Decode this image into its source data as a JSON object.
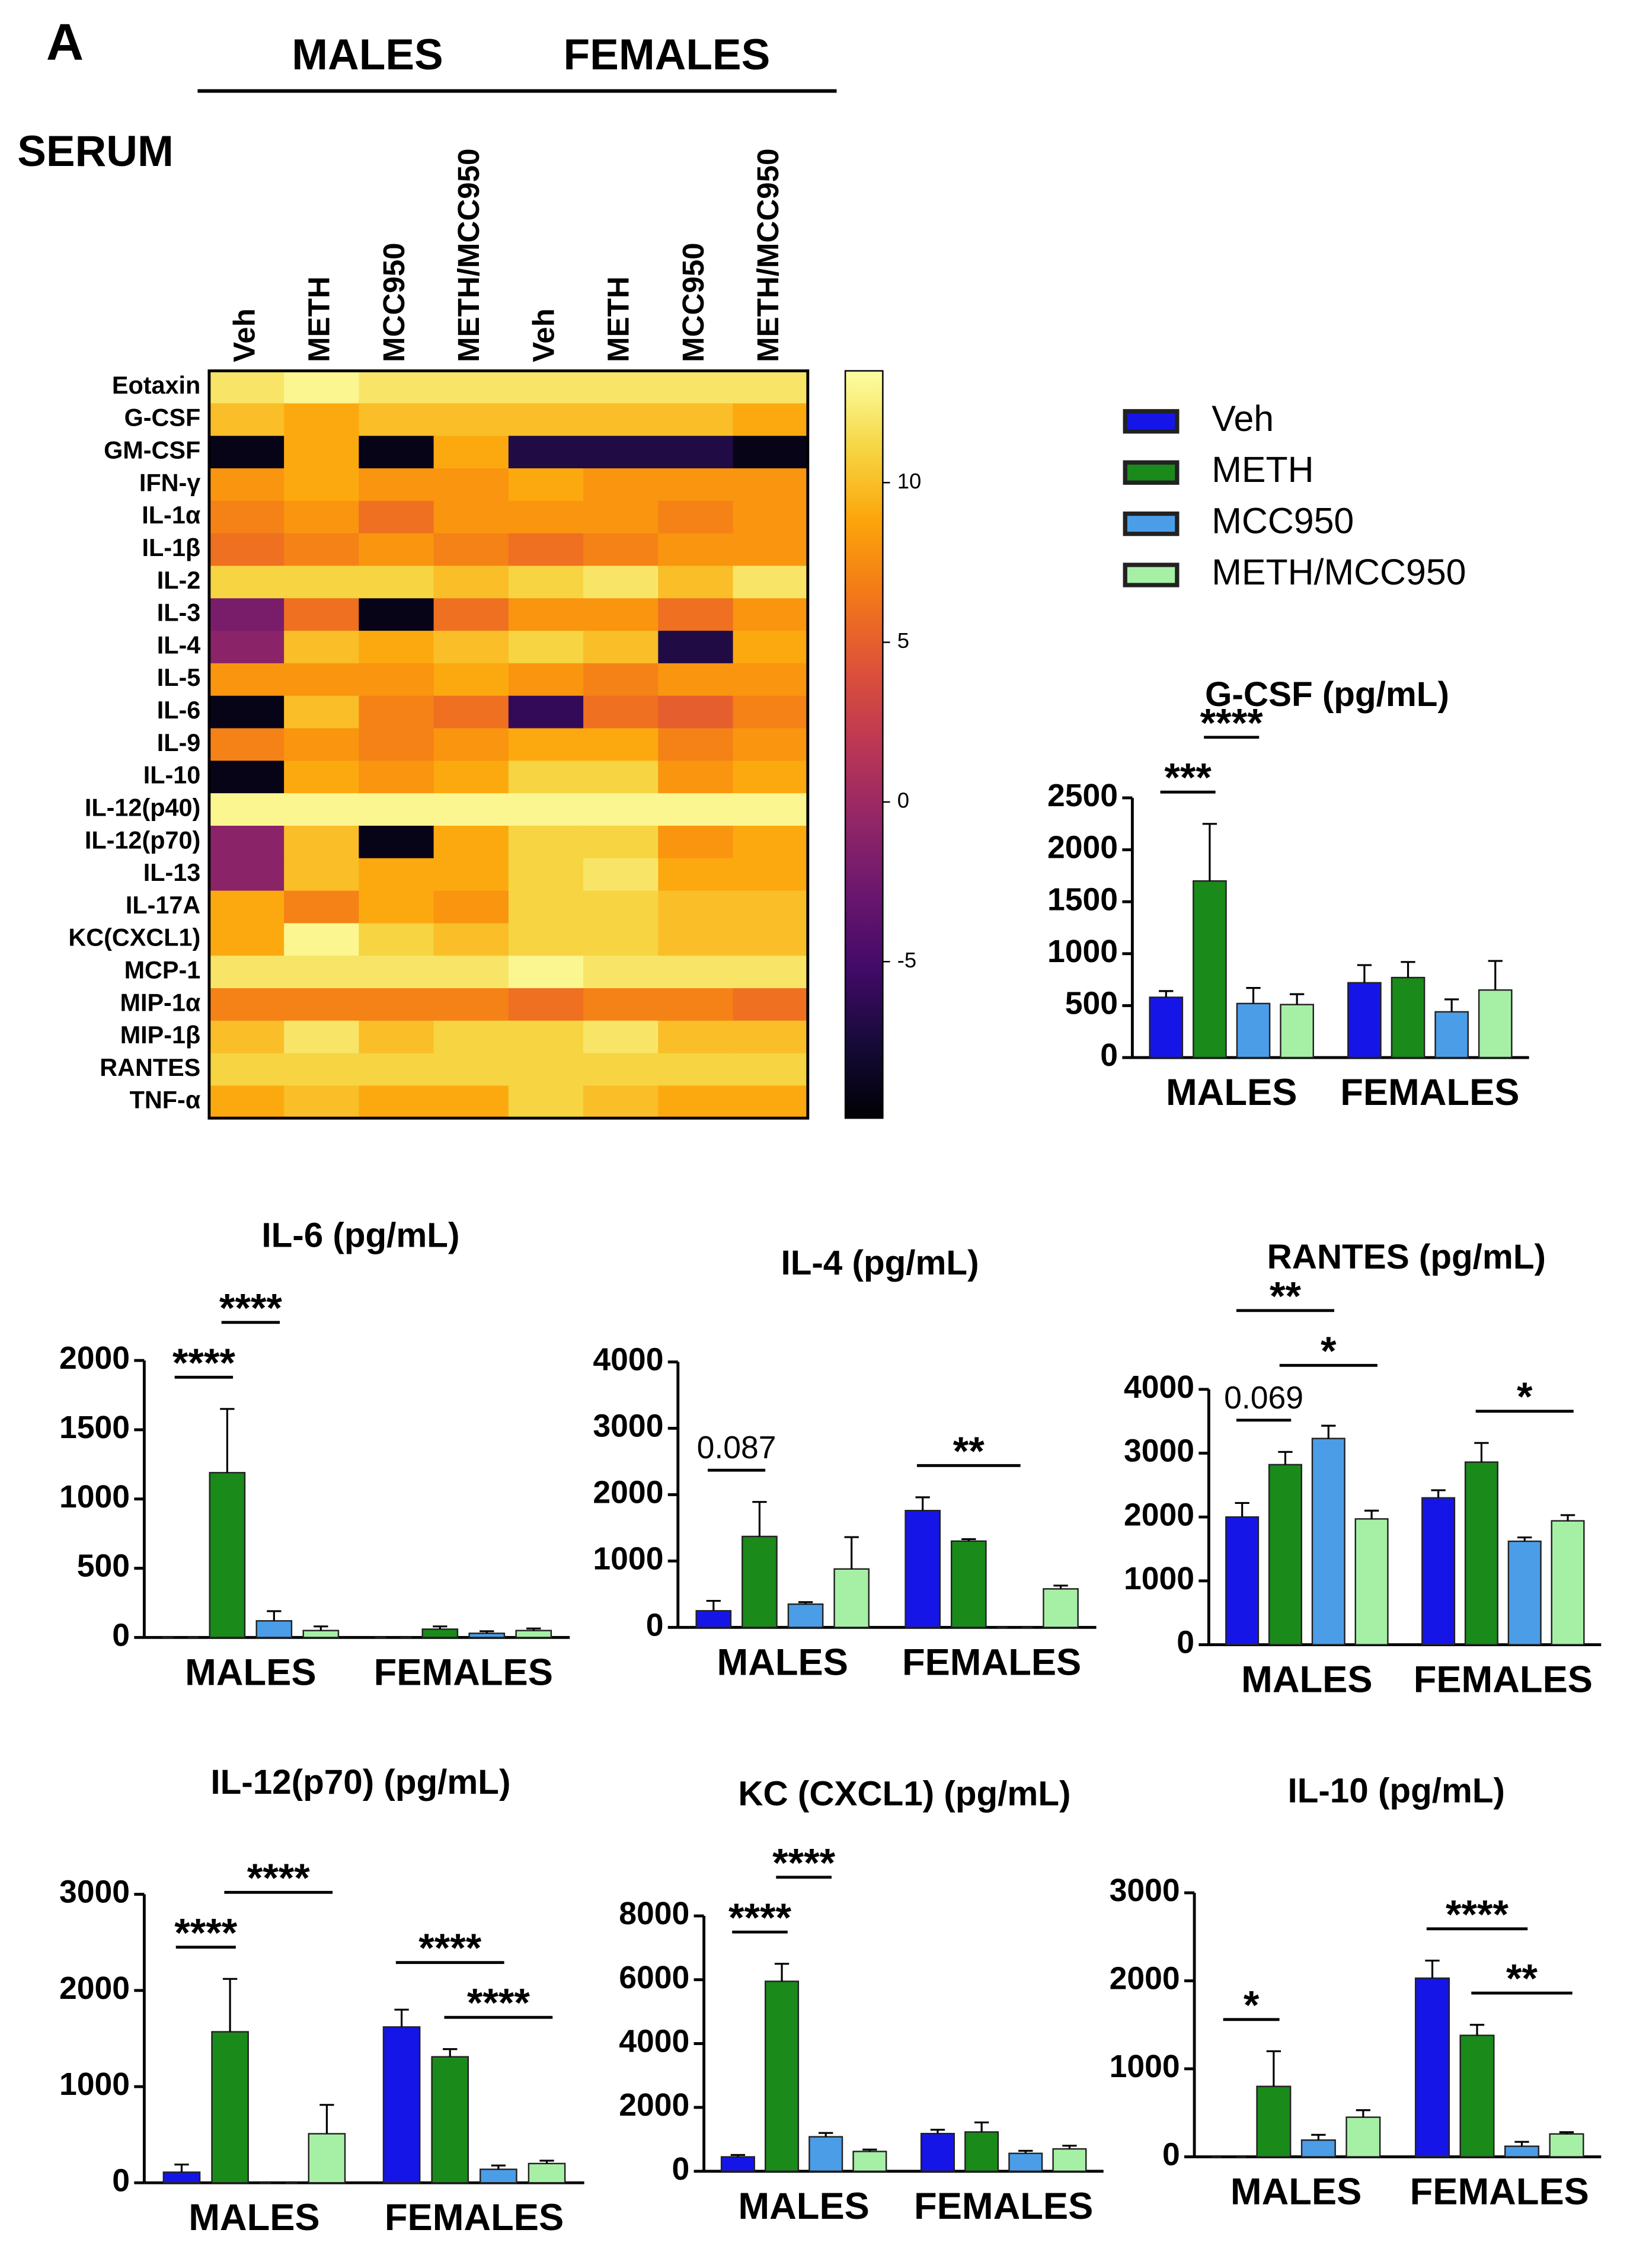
{
  "panel_label": "A",
  "chart_data": [
    {
      "type": "heatmap",
      "title": "SERUM",
      "column_groups": [
        "MALES",
        "FEMALES"
      ],
      "columns": [
        "Veh",
        "METH",
        "MCC950",
        "METH/MCC950",
        "Veh",
        "METH",
        "MCC950",
        "METH/MCC950"
      ],
      "rows": [
        "Eotaxin",
        "G-CSF",
        "GM-CSF",
        "IFN-γ",
        "IL-1α",
        "IL-1β",
        "IL-2",
        "IL-3",
        "IL-4",
        "IL-5",
        "IL-6",
        "IL-9",
        "IL-10",
        "IL-12(p40)",
        "IL-12(p70)",
        "IL-13",
        "IL-17A",
        "KC(CXCL1)",
        "MCP-1",
        "MIP-1α",
        "MIP-1β",
        "RANTES",
        "TNF-α"
      ],
      "values": [
        [
          12,
          13,
          12,
          12,
          12,
          12,
          12,
          12
        ],
        [
          10,
          9,
          10,
          10,
          10,
          10,
          10,
          9
        ],
        [
          -9,
          9,
          -9,
          9,
          -7,
          -7,
          -7,
          -9
        ],
        [
          8,
          9,
          8,
          8,
          9,
          8,
          8,
          8
        ],
        [
          7,
          8,
          6,
          8,
          8,
          8,
          7,
          8
        ],
        [
          6,
          7,
          8,
          7,
          6,
          7,
          8,
          8
        ],
        [
          11,
          11,
          11,
          10,
          11,
          12,
          10,
          12
        ],
        [
          -2,
          6,
          -9,
          6,
          8,
          8,
          6,
          8
        ],
        [
          -1,
          10,
          9,
          10,
          11,
          10,
          -7,
          9
        ],
        [
          8,
          8,
          8,
          9,
          8,
          7,
          8,
          8
        ],
        [
          -9,
          10,
          7,
          6,
          -6,
          6,
          5,
          7
        ],
        [
          7,
          8,
          7,
          8,
          9,
          9,
          7,
          8
        ],
        [
          -9,
          9,
          8,
          9,
          11,
          11,
          8,
          9
        ],
        [
          13,
          13,
          13,
          13,
          13,
          13,
          13,
          13
        ],
        [
          -1,
          10,
          -9,
          9,
          11,
          11,
          8,
          9
        ],
        [
          -1,
          10,
          9,
          9,
          11,
          12,
          9,
          9
        ],
        [
          9,
          7,
          9,
          8,
          11,
          11,
          10,
          10
        ],
        [
          9,
          13,
          11,
          10,
          11,
          11,
          10,
          10
        ],
        [
          12,
          12,
          12,
          12,
          13,
          12,
          12,
          12
        ],
        [
          7,
          7,
          7,
          7,
          6,
          7,
          7,
          6
        ],
        [
          10,
          12,
          10,
          11,
          11,
          12,
          10,
          10
        ],
        [
          11,
          11,
          11,
          11,
          11,
          11,
          11,
          11
        ],
        [
          9,
          10,
          9,
          9,
          11,
          10,
          9,
          9
        ]
      ],
      "colormap": "inferno",
      "clim": [
        -9.9,
        13.5
      ],
      "cticks": [
        -5,
        0,
        5,
        10
      ]
    },
    {
      "type": "bar",
      "title": "G-CSF (pg/mL)",
      "categories": [
        "MALES",
        "FEMALES"
      ],
      "ylim": [
        0,
        2500
      ],
      "yticks": [
        0,
        500,
        1000,
        1500,
        2000,
        2500
      ],
      "legend": true,
      "series": [
        {
          "name": "Veh",
          "color": "#1515e8",
          "values": [
            580,
            720
          ],
          "errors": [
            60,
            170
          ]
        },
        {
          "name": "METH",
          "color": "#1a8a1a",
          "values": [
            1700,
            770
          ],
          "errors": [
            550,
            150
          ]
        },
        {
          "name": "MCC950",
          "color": "#4b9de8",
          "values": [
            520,
            440
          ],
          "errors": [
            150,
            120
          ]
        },
        {
          "name": "METH/MCC950",
          "color": "#a6f0a6",
          "values": [
            510,
            650
          ],
          "errors": [
            100,
            280
          ]
        }
      ],
      "annotations": [
        {
          "label": "***",
          "category": "MALES",
          "from": "Veh",
          "to": "METH"
        },
        {
          "label": "****",
          "category": "MALES",
          "from": "METH",
          "to": "MCC950"
        }
      ]
    },
    {
      "type": "bar",
      "title": "IL-6 (pg/mL)",
      "categories": [
        "MALES",
        "FEMALES"
      ],
      "ylim": [
        0,
        2000
      ],
      "yticks": [
        0,
        500,
        1000,
        1500,
        2000
      ],
      "series": [
        {
          "name": "Veh",
          "color": "#1515e8",
          "values": [
            0,
            0
          ],
          "errors": [
            0,
            0
          ]
        },
        {
          "name": "METH",
          "color": "#1a8a1a",
          "values": [
            1190,
            60
          ],
          "errors": [
            460,
            20
          ]
        },
        {
          "name": "MCC950",
          "color": "#4b9de8",
          "values": [
            120,
            30
          ],
          "errors": [
            70,
            15
          ]
        },
        {
          "name": "METH/MCC950",
          "color": "#a6f0a6",
          "values": [
            50,
            50
          ],
          "errors": [
            30,
            15
          ]
        }
      ],
      "annotations": [
        {
          "label": "****",
          "category": "MALES",
          "from": "Veh",
          "to": "METH"
        },
        {
          "label": "****",
          "category": "MALES",
          "from": "METH",
          "to": "MCC950"
        }
      ]
    },
    {
      "type": "bar",
      "title": "IL-4 (pg/mL)",
      "categories": [
        "MALES",
        "FEMALES"
      ],
      "ylim": [
        0,
        4000
      ],
      "yticks": [
        0,
        1000,
        2000,
        3000,
        4000
      ],
      "series": [
        {
          "name": "Veh",
          "color": "#1515e8",
          "values": [
            250,
            1760
          ],
          "errors": [
            150,
            200
          ]
        },
        {
          "name": "METH",
          "color": "#1a8a1a",
          "values": [
            1370,
            1300
          ],
          "errors": [
            520,
            30
          ]
        },
        {
          "name": "MCC950",
          "color": "#4b9de8",
          "values": [
            350,
            0
          ],
          "errors": [
            30,
            0
          ]
        },
        {
          "name": "METH/MCC950",
          "color": "#a6f0a6",
          "values": [
            880,
            580
          ],
          "errors": [
            480,
            50
          ]
        }
      ],
      "annotations": [
        {
          "label": "0.087",
          "category": "MALES",
          "from": "Veh",
          "to": "METH"
        },
        {
          "label": "**",
          "category": "FEMALES",
          "from": "Veh",
          "to": "MCC950"
        }
      ]
    },
    {
      "type": "bar",
      "title": "RANTES (pg/mL)",
      "categories": [
        "MALES",
        "FEMALES"
      ],
      "ylim": [
        0,
        4000
      ],
      "yticks": [
        0,
        1000,
        2000,
        3000,
        4000
      ],
      "series": [
        {
          "name": "Veh",
          "color": "#1515e8",
          "values": [
            2000,
            2300
          ],
          "errors": [
            220,
            120
          ]
        },
        {
          "name": "METH",
          "color": "#1a8a1a",
          "values": [
            2820,
            2860
          ],
          "errors": [
            200,
            300
          ]
        },
        {
          "name": "MCC950",
          "color": "#4b9de8",
          "values": [
            3230,
            1620
          ],
          "errors": [
            200,
            60
          ]
        },
        {
          "name": "METH/MCC950",
          "color": "#a6f0a6",
          "values": [
            1970,
            1940
          ],
          "errors": [
            130,
            90
          ]
        }
      ],
      "annotations": [
        {
          "label": "0.069",
          "category": "MALES",
          "from": "Veh",
          "to": "METH"
        },
        {
          "label": "*",
          "category": "MALES",
          "from": "METH",
          "to": "METH/MCC950"
        },
        {
          "label": "**",
          "category": "MALES",
          "from": "Veh",
          "to": "MCC950"
        },
        {
          "label": "*",
          "category": "FEMALES",
          "from": "METH",
          "to": "METH/MCC950"
        }
      ]
    },
    {
      "type": "bar",
      "title": "IL-12(p70) (pg/mL)",
      "categories": [
        "MALES",
        "FEMALES"
      ],
      "ylim": [
        0,
        3000
      ],
      "yticks": [
        0,
        1000,
        2000,
        3000
      ],
      "series": [
        {
          "name": "Veh",
          "color": "#1515e8",
          "values": [
            110,
            1620
          ],
          "errors": [
            80,
            180
          ]
        },
        {
          "name": "METH",
          "color": "#1a8a1a",
          "values": [
            1570,
            1310
          ],
          "errors": [
            550,
            80
          ]
        },
        {
          "name": "MCC950",
          "color": "#4b9de8",
          "values": [
            0,
            140
          ],
          "errors": [
            0,
            40
          ]
        },
        {
          "name": "METH/MCC950",
          "color": "#a6f0a6",
          "values": [
            510,
            200
          ],
          "errors": [
            300,
            30
          ]
        }
      ],
      "annotations": [
        {
          "label": "****",
          "category": "MALES",
          "from": "Veh",
          "to": "METH"
        },
        {
          "label": "****",
          "category": "MALES",
          "from": "METH",
          "to": "METH/MCC950"
        },
        {
          "label": "****",
          "category": "FEMALES",
          "from": "METH",
          "to": "METH/MCC950"
        },
        {
          "label": "****",
          "category": "FEMALES",
          "from": "Veh",
          "to": "MCC950"
        }
      ]
    },
    {
      "type": "bar",
      "title": "KC (CXCL1) (pg/mL)",
      "categories": [
        "MALES",
        "FEMALES"
      ],
      "ylim": [
        0,
        8000
      ],
      "yticks": [
        0,
        2000,
        4000,
        6000,
        8000
      ],
      "series": [
        {
          "name": "Veh",
          "color": "#1515e8",
          "values": [
            450,
            1180
          ],
          "errors": [
            60,
            120
          ]
        },
        {
          "name": "METH",
          "color": "#1a8a1a",
          "values": [
            5950,
            1230
          ],
          "errors": [
            550,
            300
          ]
        },
        {
          "name": "MCC950",
          "color": "#4b9de8",
          "values": [
            1080,
            560
          ],
          "errors": [
            120,
            80
          ]
        },
        {
          "name": "METH/MCC950",
          "color": "#a6f0a6",
          "values": [
            620,
            700
          ],
          "errors": [
            60,
            100
          ]
        }
      ],
      "annotations": [
        {
          "label": "****",
          "category": "MALES",
          "from": "Veh",
          "to": "METH"
        },
        {
          "label": "****",
          "category": "MALES",
          "from": "METH",
          "to": "MCC950"
        }
      ]
    },
    {
      "type": "bar",
      "title": "IL-10 (pg/mL)",
      "categories": [
        "MALES",
        "FEMALES"
      ],
      "ylim": [
        0,
        3000
      ],
      "yticks": [
        0,
        1000,
        2000,
        3000
      ],
      "series": [
        {
          "name": "Veh",
          "color": "#1515e8",
          "values": [
            0,
            2030
          ],
          "errors": [
            0,
            200
          ]
        },
        {
          "name": "METH",
          "color": "#1a8a1a",
          "values": [
            800,
            1380
          ],
          "errors": [
            400,
            120
          ]
        },
        {
          "name": "MCC950",
          "color": "#4b9de8",
          "values": [
            190,
            120
          ],
          "errors": [
            60,
            50
          ]
        },
        {
          "name": "METH/MCC950",
          "color": "#a6f0a6",
          "values": [
            450,
            260
          ],
          "errors": [
            80,
            20
          ]
        }
      ],
      "annotations": [
        {
          "label": "*",
          "category": "MALES",
          "from": "Veh",
          "to": "METH"
        },
        {
          "label": "**",
          "category": "FEMALES",
          "from": "METH",
          "to": "METH/MCC950"
        },
        {
          "label": "****",
          "category": "FEMALES",
          "from": "Veh",
          "to": "MCC950"
        }
      ]
    }
  ]
}
